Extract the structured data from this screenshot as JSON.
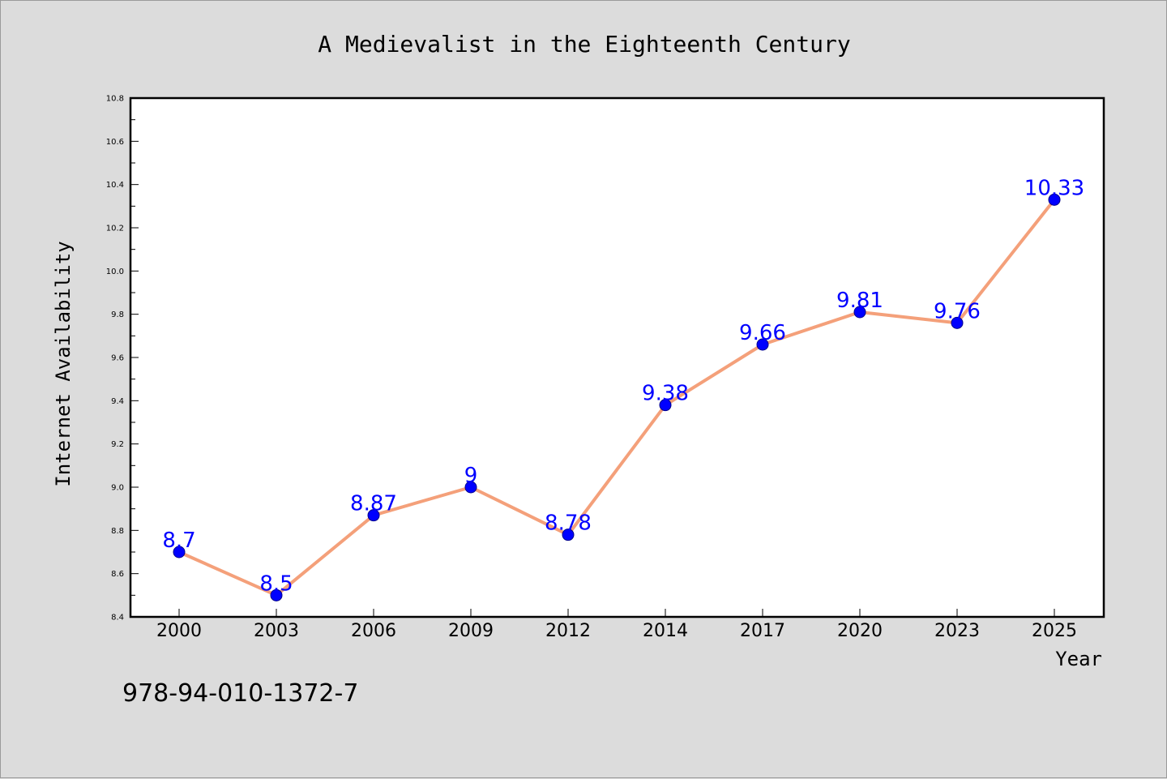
{
  "chart_data": {
    "type": "line",
    "title": "A Medievalist in the Eighteenth Century",
    "xlabel": "Year",
    "ylabel": "Internet Availability",
    "categories": [
      "2000",
      "2003",
      "2006",
      "2009",
      "2012",
      "2014",
      "2017",
      "2020",
      "2023",
      "2025"
    ],
    "series": [
      {
        "values": [
          8.7,
          8.5,
          8.87,
          9.0,
          8.78,
          9.38,
          9.66,
          9.81,
          9.76,
          10.33
        ],
        "data_labels": [
          "8.7",
          "8.5",
          "8.87",
          "9",
          "8.78",
          "9.38",
          "9.66",
          "9.81",
          "9.76",
          "10.33"
        ]
      }
    ],
    "ylim": [
      8.4,
      10.8
    ],
    "yticks": [
      "8.4",
      "8.6",
      "8.8",
      "9.0",
      "9.2",
      "9.4",
      "9.6",
      "9.8",
      "10.0",
      "10.2",
      "10.4",
      "10.6",
      "10.8"
    ],
    "grid": false,
    "legend": "none",
    "colors": {
      "line": "#f4a07a",
      "marker": "#0000ff",
      "data_label": "#0000ff",
      "background": "#dcdcdc",
      "plot_background": "#ffffff"
    }
  },
  "annotation": "978-94-010-1372-7"
}
